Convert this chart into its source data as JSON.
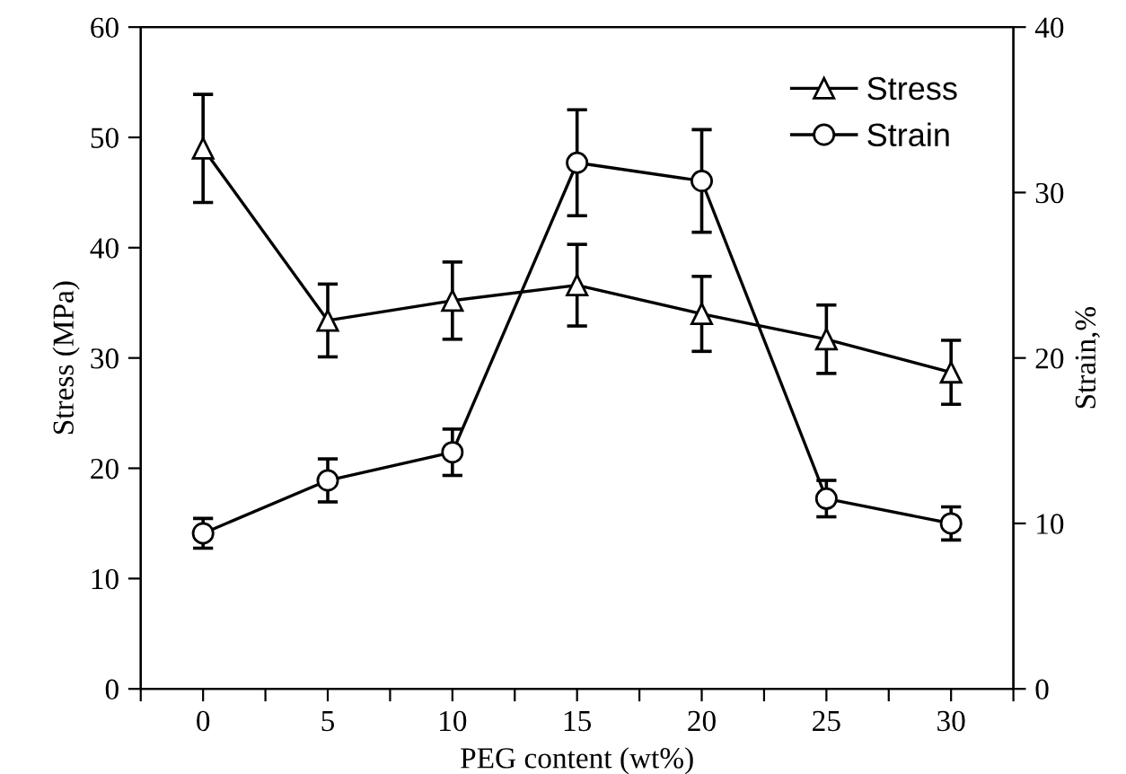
{
  "chart_data": {
    "type": "line",
    "xlabel": "PEG content (wt%)",
    "ylabel": "Stress (MPa)",
    "y2label": "Strain,%",
    "x": [
      0,
      5,
      10,
      15,
      20,
      25,
      30
    ],
    "series": [
      {
        "name": "Stress",
        "color": "#000000",
        "marker": "triangle",
        "values": [
          49.0,
          33.4,
          35.2,
          36.6,
          34.0,
          31.7,
          28.7
        ],
        "errors": [
          4.9,
          3.3,
          3.5,
          3.7,
          3.4,
          3.1,
          2.9
        ]
      },
      {
        "name": "Strain",
        "color": "#000000",
        "marker": "circle",
        "axis": "y2",
        "values": [
          9.4,
          12.6,
          14.3,
          31.8,
          30.7,
          11.5,
          10.0
        ],
        "errors": [
          0.9,
          1.3,
          1.4,
          3.2,
          3.1,
          1.1,
          1.0
        ]
      }
    ],
    "xlim": [
      -2.5,
      32.5
    ],
    "xticks": [
      {
        "value": -2.5,
        "label": null
      },
      0,
      {
        "value": 2.5,
        "label": null
      },
      5,
      {
        "value": 7.5,
        "label": null
      },
      10,
      {
        "value": 12.5,
        "label": null
      },
      15,
      {
        "value": 17.5,
        "label": null
      },
      20,
      {
        "value": 22.5,
        "label": null
      },
      25,
      {
        "value": 27.5,
        "label": null
      },
      30,
      {
        "value": 32.5,
        "label": null
      }
    ],
    "ylim": [
      0,
      60
    ],
    "yticks": [
      0,
      10,
      20,
      30,
      40,
      50,
      60
    ],
    "y2lim": [
      0,
      40
    ],
    "y2ticks": [
      0,
      10,
      20,
      30,
      40
    ],
    "legend": "top right",
    "grid": false,
    "line_style": "solid"
  }
}
